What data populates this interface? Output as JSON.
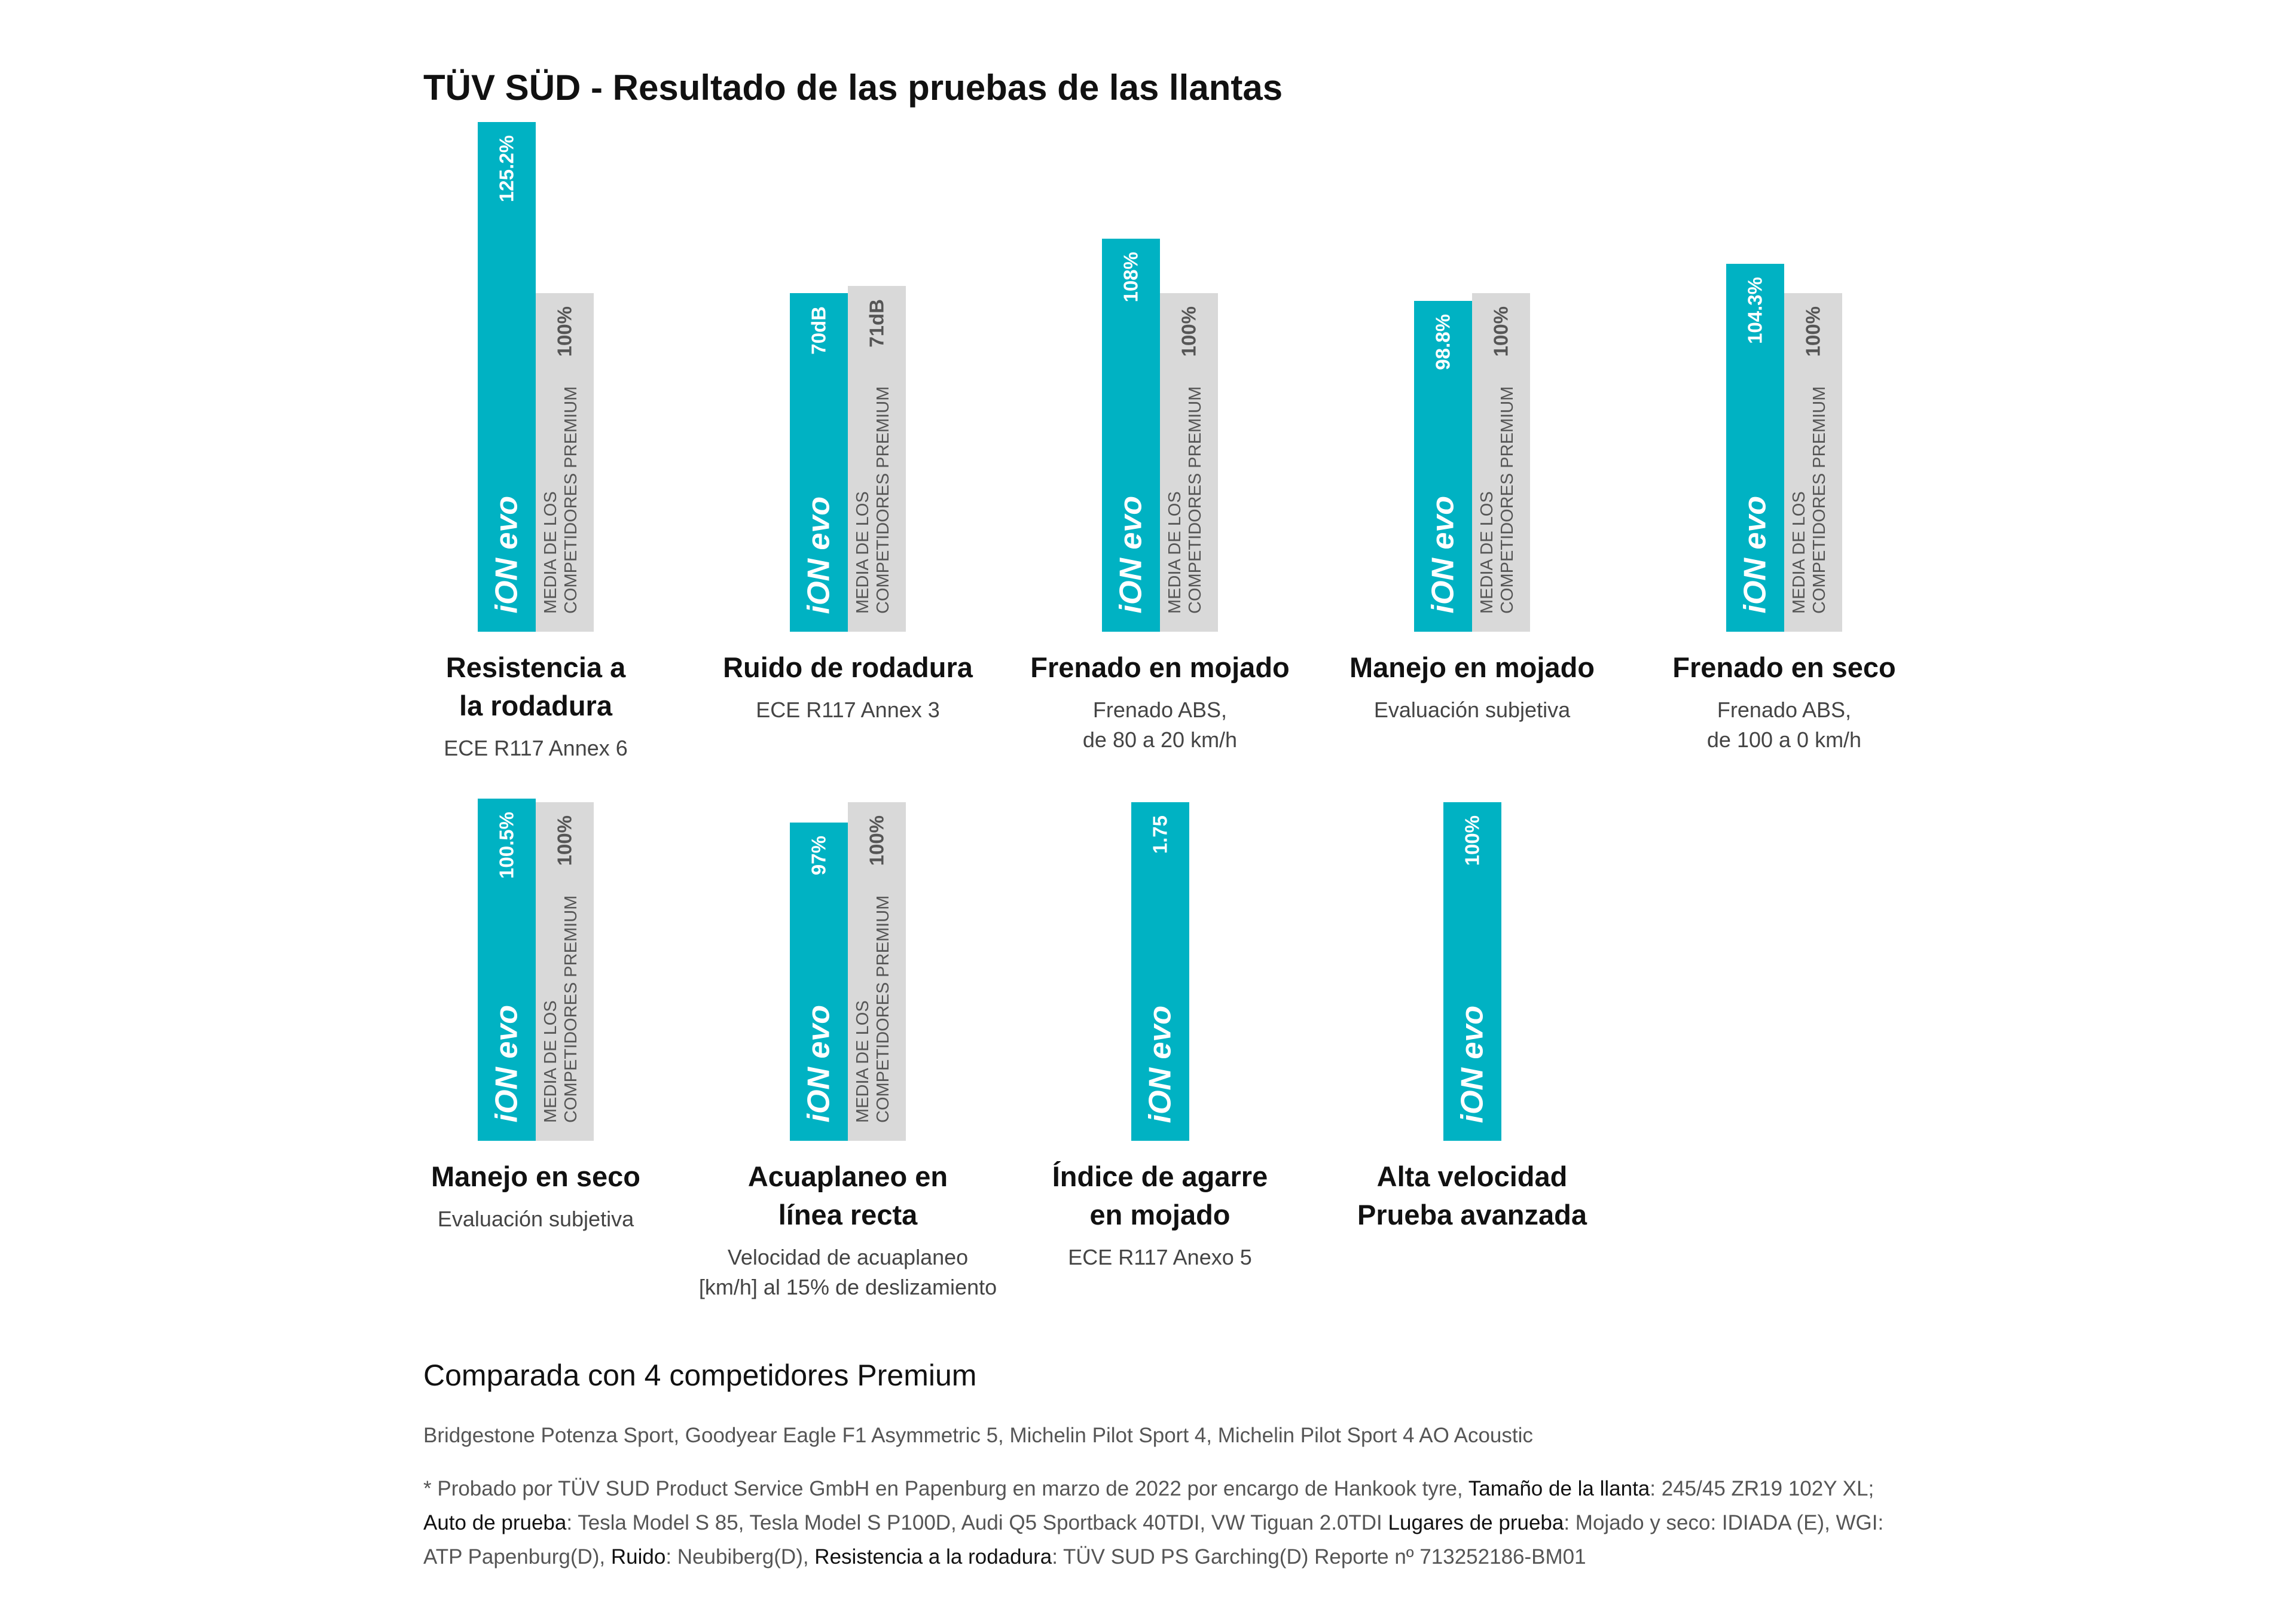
{
  "title": "TÜV SÜD - Resultado de las pruebas de las llantas",
  "chart_data": [
    {
      "type": "bar",
      "title": [
        "Resistencia a",
        "la rodadura"
      ],
      "subtitle": [
        "ECE R117 Annex 6"
      ],
      "ylim": [
        50,
        130
      ],
      "series": [
        {
          "name": "iON evo",
          "color": "#00b2c3",
          "values": [
            125.2
          ],
          "value_labels": [
            "125.2%"
          ]
        },
        {
          "name": "MEDIA DE LOS COMPETIDORES PREMIUM",
          "color": "#d9d9d9",
          "values": [
            100
          ],
          "value_labels": [
            "100%"
          ]
        }
      ]
    },
    {
      "type": "bar",
      "title": [
        "Ruido de rodadura"
      ],
      "subtitle": [
        "ECE R117 Annex 3"
      ],
      "ylim": [
        20,
        100
      ],
      "series": [
        {
          "name": "iON evo",
          "color": "#00b2c3",
          "values": [
            70
          ],
          "value_labels": [
            "70dB"
          ]
        },
        {
          "name": "MEDIA DE LOS COMPETIDORES PREMIUM",
          "color": "#d9d9d9",
          "values": [
            71
          ],
          "value_labels": [
            "71dB"
          ]
        }
      ]
    },
    {
      "type": "bar",
      "title": [
        "Frenado en mojado"
      ],
      "subtitle": [
        "Frenado ABS,",
        "de 80 a 20 km/h"
      ],
      "ylim": [
        50,
        130
      ],
      "series": [
        {
          "name": "iON evo",
          "color": "#00b2c3",
          "values": [
            108
          ],
          "value_labels": [
            "108%"
          ]
        },
        {
          "name": "MEDIA DE LOS COMPETIDORES PREMIUM",
          "color": "#d9d9d9",
          "values": [
            100
          ],
          "value_labels": [
            "100%"
          ]
        }
      ]
    },
    {
      "type": "bar",
      "title": [
        "Manejo en mojado"
      ],
      "subtitle": [
        "Evaluación subjetiva"
      ],
      "ylim": [
        50,
        130
      ],
      "series": [
        {
          "name": "iON evo",
          "color": "#00b2c3",
          "values": [
            98.8
          ],
          "value_labels": [
            "98.8%"
          ]
        },
        {
          "name": "MEDIA DE LOS COMPETIDORES PREMIUM",
          "color": "#d9d9d9",
          "values": [
            100
          ],
          "value_labels": [
            "100%"
          ]
        }
      ]
    },
    {
      "type": "bar",
      "title": [
        "Frenado en seco"
      ],
      "subtitle": [
        "Frenado ABS,",
        "de 100 a 0 km/h"
      ],
      "ylim": [
        50,
        130
      ],
      "series": [
        {
          "name": "iON evo",
          "color": "#00b2c3",
          "values": [
            104.3
          ],
          "value_labels": [
            "104.3%"
          ]
        },
        {
          "name": "MEDIA DE LOS COMPETIDORES PREMIUM",
          "color": "#d9d9d9",
          "values": [
            100
          ],
          "value_labels": [
            "100%"
          ]
        }
      ]
    },
    {
      "type": "bar",
      "title": [
        "Manejo en seco"
      ],
      "subtitle": [
        "Evaluación subjetiva"
      ],
      "ylim": [
        50,
        130
      ],
      "series": [
        {
          "name": "iON evo",
          "color": "#00b2c3",
          "values": [
            100.5
          ],
          "value_labels": [
            "100.5%"
          ]
        },
        {
          "name": "MEDIA DE LOS COMPETIDORES PREMIUM",
          "color": "#d9d9d9",
          "values": [
            100
          ],
          "value_labels": [
            "100%"
          ]
        }
      ]
    },
    {
      "type": "bar",
      "title": [
        "Acuaplaneo en",
        "línea recta"
      ],
      "subtitle": [
        "Velocidad de acuaplaneo",
        "[km/h] al 15% de deslizamiento"
      ],
      "ylim": [
        50,
        130
      ],
      "series": [
        {
          "name": "iON evo",
          "color": "#00b2c3",
          "values": [
            97
          ],
          "value_labels": [
            "97%"
          ]
        },
        {
          "name": "MEDIA DE LOS COMPETIDORES PREMIUM",
          "color": "#d9d9d9",
          "values": [
            100
          ],
          "value_labels": [
            "100%"
          ]
        }
      ]
    },
    {
      "type": "bar",
      "title": [
        "Índice de agarre",
        "en mojado"
      ],
      "subtitle": [
        "ECE R117 Anexo 5"
      ],
      "ylim": [
        0,
        2.8
      ],
      "series": [
        {
          "name": "iON evo",
          "color": "#00b2c3",
          "values": [
            1.75
          ]
        }
      ]
    },
    {
      "type": "bar",
      "title": [
        "Alta velocidad",
        "Prueba avanzada"
      ],
      "subtitle": [],
      "ylim": [
        50,
        130
      ],
      "series": [
        {
          "name": "iON evo",
          "color": "#00b2c3",
          "values": [
            100
          ],
          "value_labels": [
            "100%"
          ]
        }
      ]
    }
  ],
  "comparison": {
    "heading": "Comparada con 4 competidores Premium",
    "competitors": "Bridgestone Potenza Sport, Goodyear Eagle F1 Asymmetric 5, Michelin Pilot Sport 4, Michelin Pilot Sport 4 AO Acoustic",
    "note_intro": "* Probado por TÜV SUD Product Service GmbH en Papenburg en marzo de 2022 por encargo de Hankook tyre, ",
    "note_items": [
      {
        "label": "Tamaño de la llanta",
        "text": ": 245/45 ZR19 102Y XL; "
      },
      {
        "label": "Auto de prueba",
        "text": ": Tesla Model S 85, Tesla Model S P100D, Audi Q5 Sportback 40TDI, VW Tiguan 2.0TDI "
      },
      {
        "label": "Lugares de prueba",
        "text": ": Mojado y seco: IDIADA (E), WGI: ATP Papenburg(D), "
      },
      {
        "label": "Ruido",
        "text": ": Neubiberg(D), "
      },
      {
        "label": "Resistencia a la rodadura",
        "text": ": TÜV SUD PS Garching(D) Reporte nº 713252186-BM01"
      }
    ]
  }
}
